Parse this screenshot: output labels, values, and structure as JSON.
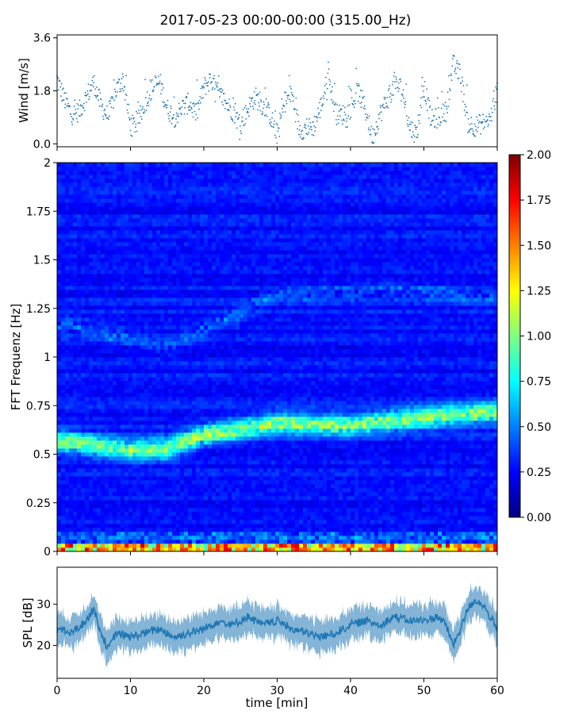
{
  "figure": {
    "title": "2017-05-23 00:00-00:00 (315.00_Hz)"
  },
  "chart_data": [
    {
      "type": "scatter",
      "name": "wind-panel",
      "ylabel": "Wind [m/s]",
      "xlim": [
        0,
        60
      ],
      "ylim": [
        -0.1,
        3.7
      ],
      "yticks": [
        0.0,
        1.8,
        3.6
      ],
      "ytick_labels": [
        "0.0",
        "1.8",
        "3.6"
      ],
      "color": "#1f77b4",
      "x": [
        0,
        1,
        2,
        3,
        4,
        5,
        6,
        7,
        8,
        9,
        10,
        11,
        12,
        13,
        14,
        15,
        16,
        17,
        18,
        19,
        20,
        21,
        22,
        23,
        24,
        25,
        26,
        27,
        28,
        29,
        30,
        31,
        32,
        33,
        34,
        35,
        36,
        37,
        38,
        39,
        40,
        41,
        42,
        43,
        44,
        45,
        46,
        47,
        48,
        49,
        50,
        51,
        52,
        53,
        54,
        55,
        56,
        57,
        58,
        59,
        60
      ],
      "y": [
        2.2,
        1.5,
        1.0,
        1.1,
        1.6,
        2.1,
        1.3,
        0.9,
        1.8,
        2.2,
        0.6,
        0.7,
        1.4,
        1.9,
        2.1,
        1.2,
        0.9,
        1.2,
        1.4,
        1.0,
        1.9,
        2.2,
        1.7,
        1.4,
        1.1,
        0.6,
        1.2,
        1.6,
        1.3,
        1.0,
        0.3,
        1.4,
        1.7,
        0.5,
        0.5,
        0.6,
        1.3,
        2.3,
        1.0,
        1.0,
        1.2,
        1.8,
        1.2,
        0.2,
        1.0,
        1.5,
        2.0,
        1.9,
        0.6,
        0.3,
        2.0,
        0.8,
        0.9,
        1.1,
        2.7,
        2.3,
        0.7,
        0.6,
        0.7,
        0.8,
        1.8
      ]
    },
    {
      "type": "heatmap",
      "name": "fft-panel",
      "ylabel": "FFT Frequenz [Hz]",
      "xlim": [
        0,
        60
      ],
      "ylim": [
        0,
        2
      ],
      "yticks": [
        0,
        0.25,
        0.5,
        0.75,
        1,
        1.25,
        1.5,
        1.75,
        2
      ],
      "ytick_labels": [
        "0",
        "0.25",
        "0.5",
        "0.75",
        "1",
        "1.25",
        "1.5",
        "1.75",
        "2"
      ],
      "colormap": "jet",
      "colorbar": {
        "range": [
          0,
          2
        ],
        "ticks": [
          0,
          0.25,
          0.5,
          0.75,
          1,
          1.25,
          1.5,
          1.75,
          2
        ],
        "tick_labels": [
          "0.00",
          "0.25",
          "0.50",
          "0.75",
          "1.00",
          "1.25",
          "1.50",
          "1.75",
          "2.00"
        ]
      },
      "ridge_frequency": {
        "x": [
          0,
          10,
          15,
          20,
          30,
          40,
          50,
          60
        ],
        "y": [
          0.57,
          0.52,
          0.53,
          0.6,
          0.66,
          0.65,
          0.69,
          0.72
        ]
      },
      "secondary_ridge_frequency": {
        "x": [
          0,
          15,
          30,
          45,
          60
        ],
        "y": [
          1.18,
          1.05,
          1.32,
          1.35,
          1.3
        ]
      }
    },
    {
      "type": "line",
      "name": "spl-panel",
      "ylabel": "SPL [dB]",
      "xlabel": "time [min]",
      "xlim": [
        0,
        60
      ],
      "ylim": [
        12,
        39
      ],
      "yticks": [
        20,
        30
      ],
      "ytick_labels": [
        "20",
        "30"
      ],
      "xticks": [
        0,
        10,
        20,
        30,
        40,
        50,
        60
      ],
      "xtick_labels": [
        "0",
        "10",
        "20",
        "30",
        "40",
        "50",
        "60"
      ],
      "color": "#1f77b4",
      "x": [
        0,
        2,
        4,
        5,
        6,
        7,
        8,
        10,
        12,
        14,
        16,
        18,
        20,
        22,
        24,
        26,
        28,
        30,
        32,
        34,
        36,
        38,
        40,
        42,
        44,
        46,
        48,
        50,
        52,
        53,
        54,
        55,
        56,
        57,
        58,
        59,
        60
      ],
      "y": [
        24,
        23,
        26,
        29,
        23,
        19,
        23,
        22,
        23,
        24,
        22,
        23,
        24,
        26,
        25,
        27,
        25,
        26,
        24,
        23,
        22,
        23,
        25,
        26,
        25,
        27,
        26,
        26,
        27,
        25,
        20,
        24,
        29,
        31,
        30,
        27,
        24
      ]
    }
  ]
}
